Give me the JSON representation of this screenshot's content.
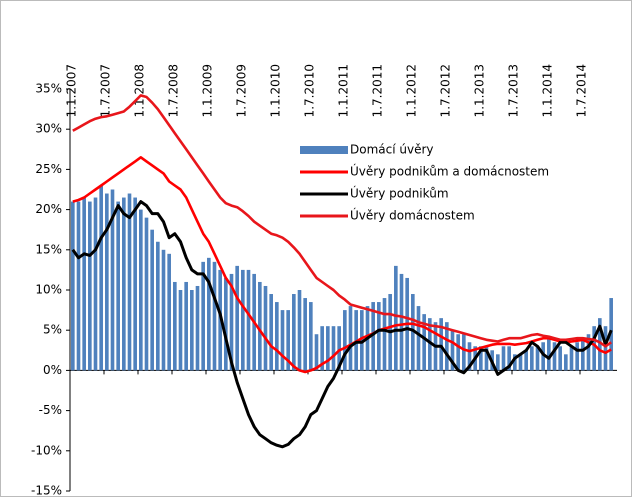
{
  "chart_data": {
    "type": "bar",
    "categories": [
      "1.1.2007",
      null,
      null,
      null,
      null,
      null,
      "1.7.2007",
      null,
      null,
      null,
      null,
      null,
      "1.1.2008",
      null,
      null,
      null,
      null,
      null,
      "1.7.2008",
      null,
      null,
      null,
      null,
      null,
      "1.1.2009",
      null,
      null,
      null,
      null,
      null,
      "1.7.2009",
      null,
      null,
      null,
      null,
      null,
      "1.1.2010",
      null,
      null,
      null,
      null,
      null,
      "1.7.2010",
      null,
      null,
      null,
      null,
      null,
      "1.1.2011",
      null,
      null,
      null,
      null,
      null,
      "1.7.2011",
      null,
      null,
      null,
      null,
      null,
      "1.1.2012",
      null,
      null,
      null,
      null,
      null,
      "1.7.2012",
      null,
      null,
      null,
      null,
      null,
      "1.1.2013",
      null,
      null,
      null,
      null,
      null,
      "1.7.2013",
      null,
      null,
      null,
      null,
      null,
      "1.1.2014",
      null,
      null,
      null,
      null,
      null,
      "1.7.2014",
      null,
      null,
      null,
      null,
      null
    ],
    "series": [
      {
        "name": "Domácí úvěry",
        "type": "bar",
        "color": "#4f81bd",
        "values": [
          21,
          21,
          21.5,
          21,
          21.5,
          23,
          22,
          22.5,
          21,
          21.5,
          22,
          21.5,
          20,
          19,
          17.5,
          16,
          15,
          14.5,
          11,
          10,
          11,
          10,
          10.5,
          13.5,
          14,
          13.5,
          12.5,
          11.5,
          12,
          13,
          12.5,
          12.5,
          12,
          11,
          10.5,
          9.5,
          8.5,
          7.5,
          7.5,
          9.5,
          10,
          9,
          8.5,
          4.5,
          5.5,
          5.5,
          5.5,
          5.5,
          7.5,
          8,
          7.5,
          7.5,
          8,
          8.5,
          8.5,
          9,
          9.5,
          13,
          12,
          11.5,
          9.5,
          8,
          7,
          6.5,
          6,
          6.5,
          6,
          5,
          4.5,
          4.5,
          3.5,
          3,
          3,
          3,
          2.5,
          2,
          3,
          3,
          2,
          2,
          2.5,
          3,
          3,
          3.5,
          4,
          3.5,
          3,
          2,
          3,
          3.5,
          4,
          4.5,
          5.5,
          6.5,
          5.5,
          9
        ]
      },
      {
        "name": "Úvěry podnikům a domácnostem",
        "type": "line",
        "color": "#ff0000",
        "values": [
          21,
          21.2,
          21.5,
          22,
          22.5,
          23,
          23.5,
          24,
          24.5,
          25,
          25.5,
          26,
          26.5,
          26,
          25.5,
          25,
          24.5,
          23.5,
          23,
          22.5,
          21.5,
          20,
          18.5,
          17,
          16,
          14.5,
          13,
          11.5,
          10.5,
          9,
          8,
          7,
          6,
          5,
          4,
          3,
          2.5,
          1.8,
          1.2,
          0.5,
          0,
          -0.2,
          0,
          0.3,
          0.8,
          1.2,
          1.8,
          2.5,
          2.8,
          3.2,
          3.6,
          4,
          4.3,
          4.6,
          5,
          5.2,
          5.4,
          5.6,
          5.7,
          5.8,
          5.8,
          5.6,
          5.4,
          5,
          4.6,
          4.2,
          3.8,
          3.5,
          3,
          2.6,
          2.4,
          2.6,
          2.8,
          3,
          3.2,
          3.3,
          3.3,
          3.3,
          3.2,
          3.3,
          3.4,
          3.6,
          3.8,
          4,
          4,
          3.8,
          3.6,
          3.5,
          3.6,
          3.7,
          3.8,
          3.5,
          3.2,
          2.5,
          2.2,
          2.6
        ]
      },
      {
        "name": "Úvěry podnikům",
        "type": "line",
        "color": "#000000",
        "values": [
          15,
          14,
          14.5,
          14.3,
          15,
          16.5,
          17.5,
          19,
          20.5,
          19.5,
          19,
          20,
          21,
          20.5,
          19.5,
          19.5,
          18.5,
          16.5,
          17,
          16,
          14,
          12.5,
          12,
          12,
          11,
          9,
          7,
          4,
          1,
          -1.5,
          -3.5,
          -5.5,
          -7,
          -8,
          -8.5,
          -9,
          -9.3,
          -9.5,
          -9.2,
          -8.5,
          -8,
          -7,
          -5.5,
          -5,
          -3.5,
          -2,
          -1,
          0.5,
          2,
          3,
          3.5,
          3.5,
          4,
          4.5,
          5,
          5,
          4.8,
          5,
          5,
          5.2,
          5,
          4.5,
          4,
          3.5,
          3,
          3,
          2,
          1,
          0,
          -0.3,
          0.5,
          1.5,
          2.5,
          2.5,
          1,
          -0.5,
          0,
          0.5,
          1.5,
          2,
          2.5,
          3.5,
          3,
          2,
          1.5,
          2.5,
          3.5,
          3.5,
          3,
          2.5,
          2.5,
          3,
          4,
          5.5,
          3.2,
          5
        ]
      },
      {
        "name": "Úvěry domácnostem",
        "type": "line",
        "color": "#e8161b",
        "values": [
          29.8,
          30.2,
          30.6,
          31,
          31.3,
          31.5,
          31.6,
          31.8,
          32,
          32.2,
          32.8,
          33.5,
          34.2,
          34,
          33.3,
          32.5,
          31.5,
          30.5,
          29.5,
          28.5,
          27.5,
          26.5,
          25.5,
          24.5,
          23.5,
          22.5,
          21.5,
          20.8,
          20.5,
          20.3,
          19.8,
          19.2,
          18.5,
          18,
          17.5,
          17,
          16.8,
          16.5,
          16,
          15.3,
          14.5,
          13.5,
          12.5,
          11.5,
          11,
          10.5,
          10,
          9.3,
          8.8,
          8.2,
          8,
          7.8,
          7.6,
          7.4,
          7.2,
          7,
          7,
          6.8,
          6.7,
          6.5,
          6.3,
          6,
          5.8,
          5.6,
          5.5,
          5.4,
          5.2,
          5,
          4.8,
          4.6,
          4.4,
          4.2,
          4,
          3.8,
          3.7,
          3.6,
          3.8,
          4,
          4,
          4,
          4.2,
          4.4,
          4.5,
          4.3,
          4.2,
          4,
          3.8,
          3.8,
          3.9,
          4,
          4,
          3.9,
          3.8,
          3.5,
          3,
          3.5
        ]
      }
    ],
    "ylim": [
      -15,
      35
    ],
    "yticks": [
      {
        "value": -15,
        "label": "-15%"
      },
      {
        "value": -10,
        "label": "-10%"
      },
      {
        "value": -5,
        "label": "-5%"
      },
      {
        "value": 0,
        "label": "0%"
      },
      {
        "value": 5,
        "label": "5%"
      },
      {
        "value": 10,
        "label": "10%"
      },
      {
        "value": 15,
        "label": "15%"
      },
      {
        "value": 20,
        "label": "20%"
      },
      {
        "value": 25,
        "label": "25%"
      },
      {
        "value": 30,
        "label": "30%"
      },
      {
        "value": 35,
        "label": "35%"
      }
    ],
    "legend": "right"
  }
}
